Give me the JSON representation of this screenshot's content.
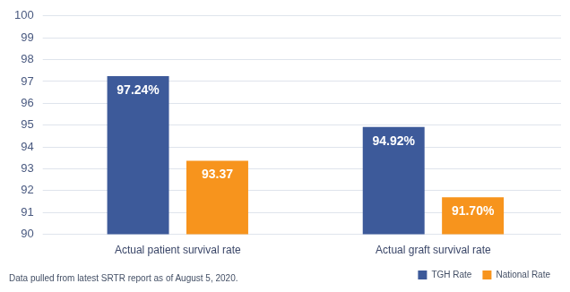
{
  "chart_data": {
    "type": "bar",
    "categories": [
      "Actual patient survival rate",
      "Actual graft survival rate"
    ],
    "series": [
      {
        "name": "TGH Rate",
        "color": "#3d5a9a",
        "values": [
          97.24,
          94.92
        ],
        "value_labels": [
          "97.24%",
          "94.92%"
        ]
      },
      {
        "name": "National Rate",
        "color": "#f7941d",
        "values": [
          93.37,
          91.7
        ],
        "value_labels": [
          "93.37",
          "91.70%"
        ]
      }
    ],
    "ylim": [
      90,
      100
    ],
    "yticks": [
      90,
      91,
      92,
      93,
      94,
      95,
      96,
      97,
      98,
      99,
      100
    ],
    "grid": true,
    "legend": "lower right",
    "data_labels": true,
    "annotations": [
      "Data pulled from latest SRTR report as of August 5, 2020."
    ]
  }
}
